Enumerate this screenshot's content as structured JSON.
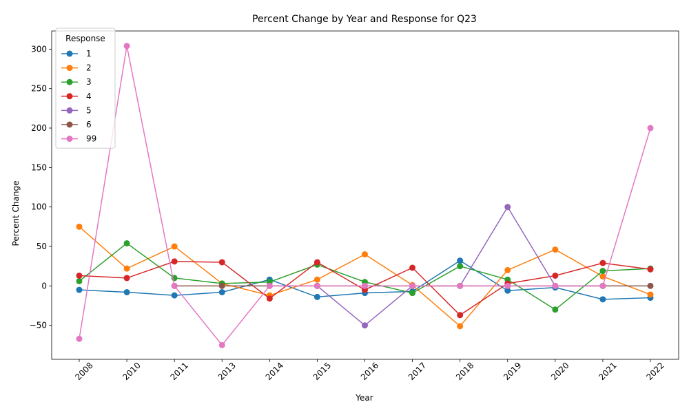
{
  "chart_data": {
    "type": "line",
    "title": "Percent Change by Year and Response for Q23",
    "xlabel": "Year",
    "ylabel": "Percent Change",
    "categories": [
      "2008",
      "2010",
      "2011",
      "2013",
      "2014",
      "2015",
      "2016",
      "2017",
      "2018",
      "2019",
      "2020",
      "2021",
      "2022"
    ],
    "ylim": [
      -93,
      323
    ],
    "yticks": [
      -50,
      0,
      50,
      100,
      150,
      200,
      250,
      300
    ],
    "grid": false,
    "legend": {
      "title": "Response",
      "placement": "top-left"
    },
    "series": [
      {
        "name": "1",
        "color": "#1f77b4",
        "values": [
          -5,
          -8,
          -12,
          -8,
          8,
          -14,
          -9,
          -7,
          32,
          -6,
          -2,
          -17,
          -15
        ]
      },
      {
        "name": "2",
        "color": "#ff7f0e",
        "values": [
          75,
          22,
          50,
          3,
          -12,
          8,
          40,
          1,
          -51,
          20,
          46,
          12,
          -11
        ]
      },
      {
        "name": "3",
        "color": "#2ca02c",
        "values": [
          6,
          54,
          10,
          3,
          5,
          27,
          5,
          -9,
          25,
          8,
          -30,
          19,
          22
        ]
      },
      {
        "name": "4",
        "color": "#d62728",
        "values": [
          13,
          10,
          31,
          30,
          -16,
          30,
          -5,
          23,
          -37,
          3,
          13,
          29,
          21
        ]
      },
      {
        "name": "5",
        "color": "#9467bd",
        "values": [
          null,
          null,
          null,
          null,
          null,
          0,
          -50,
          0,
          0,
          100,
          0,
          0,
          null
        ]
      },
      {
        "name": "6",
        "color": "#8c564b",
        "values": [
          null,
          null,
          0,
          0,
          0,
          0,
          0,
          0,
          0,
          0,
          0,
          0,
          0
        ]
      },
      {
        "name": "99",
        "color": "#e377c2",
        "values": [
          -67,
          304,
          0,
          -75,
          0,
          0,
          0,
          0,
          0,
          0,
          0,
          0,
          200
        ]
      }
    ]
  }
}
